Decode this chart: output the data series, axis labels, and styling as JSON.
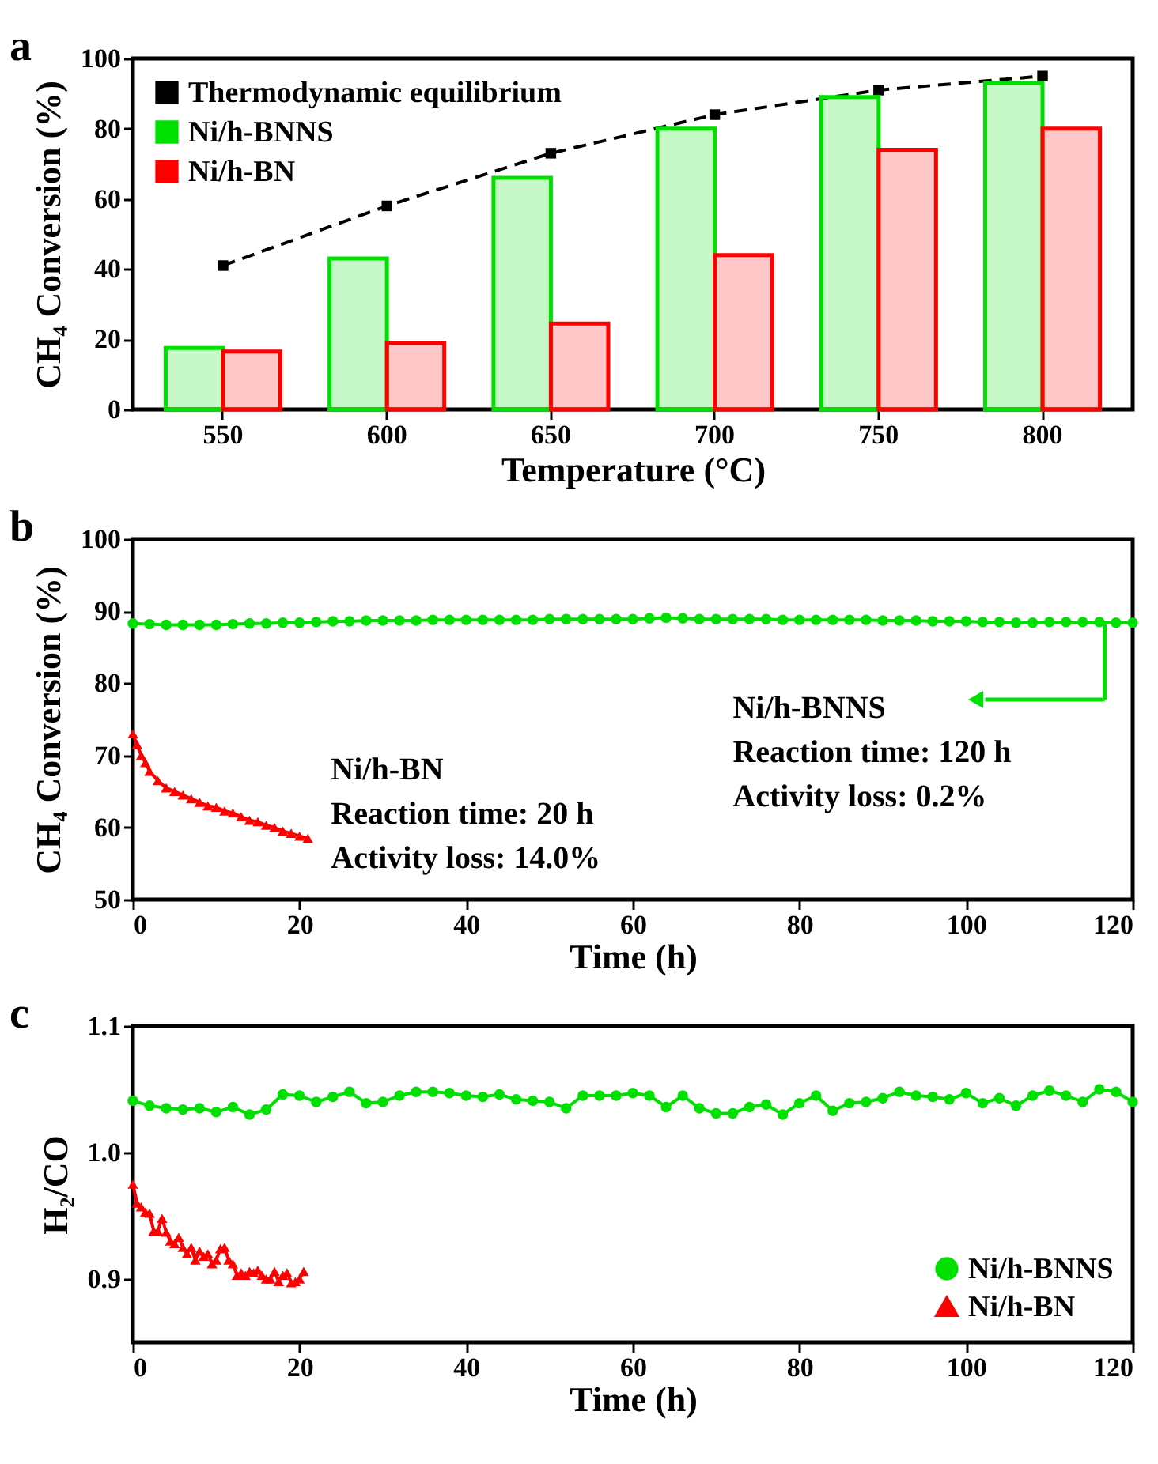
{
  "chart_data": [
    {
      "type": "bar",
      "title": "a",
      "xlabel": "Temperature (°C)",
      "ylabel": "CH₄ Conversion (%)",
      "categories": [
        "550",
        "600",
        "650",
        "700",
        "750",
        "800"
      ],
      "ylim": [
        0,
        100
      ],
      "yticks": [
        0,
        20,
        40,
        60,
        80,
        100
      ],
      "legend": "top left",
      "series": [
        {
          "type": "line",
          "name": "Thermodynamic equilibrium",
          "color": "#000000",
          "marker": "square",
          "line_style": "dashed",
          "values": [
            41,
            58,
            73,
            84,
            91,
            95
          ]
        },
        {
          "name": "Ni/h-BNNS",
          "color": "#00e000",
          "values": [
            17.5,
            43,
            66,
            80,
            89,
            93
          ]
        },
        {
          "name": "Ni/h-BN",
          "color": "#ff0000",
          "values": [
            16.5,
            19,
            24.5,
            44,
            74,
            80
          ]
        }
      ]
    },
    {
      "type": "line",
      "title": "b",
      "xlabel": "Time (h)",
      "ylabel": "CH₄ Conversion (%)",
      "xlim": [
        0,
        120
      ],
      "xticks": [
        0,
        20,
        40,
        60,
        80,
        100,
        120
      ],
      "ylim": [
        50,
        100
      ],
      "yticks": [
        50,
        60,
        70,
        80,
        90,
        100
      ],
      "legend": false,
      "annotations": [
        "Ni/h-BN",
        "Reaction time: 20 h",
        "Activity loss: 14.0%",
        "Ni/h-BNNS",
        "Reaction time: 120 h",
        "Activity loss: 0.2%"
      ],
      "series": [
        {
          "color": "#00e000",
          "marker": "circle",
          "x": [
            0,
            2,
            4,
            6,
            8,
            10,
            12,
            14,
            16,
            18,
            20,
            22,
            24,
            26,
            28,
            30,
            32,
            34,
            36,
            38,
            40,
            42,
            44,
            46,
            48,
            50,
            52,
            54,
            56,
            58,
            60,
            62,
            64,
            66,
            68,
            70,
            72,
            74,
            76,
            78,
            80,
            82,
            84,
            86,
            88,
            90,
            92,
            94,
            96,
            98,
            100,
            102,
            104,
            106,
            108,
            110,
            112,
            114,
            116,
            118,
            120
          ],
          "values": [
            88.3,
            88.2,
            88.1,
            88.1,
            88.1,
            88.1,
            88.2,
            88.3,
            88.3,
            88.4,
            88.4,
            88.5,
            88.6,
            88.6,
            88.7,
            88.7,
            88.7,
            88.7,
            88.8,
            88.8,
            88.8,
            88.8,
            88.8,
            88.8,
            88.8,
            88.9,
            88.9,
            88.9,
            88.9,
            88.9,
            88.9,
            89.0,
            89.1,
            89.0,
            88.9,
            88.9,
            88.9,
            88.9,
            88.9,
            88.8,
            88.8,
            88.8,
            88.8,
            88.8,
            88.8,
            88.7,
            88.7,
            88.7,
            88.6,
            88.6,
            88.6,
            88.5,
            88.5,
            88.4,
            88.4,
            88.5,
            88.5,
            88.5,
            88.5,
            88.4,
            88.4
          ]
        },
        {
          "color": "#ff0000",
          "marker": "triangle",
          "x": [
            0,
            0.5,
            1,
            1.5,
            2,
            3,
            4,
            5,
            6,
            7,
            8,
            9,
            10,
            11,
            12,
            13,
            14,
            15,
            16,
            17,
            18,
            19,
            20,
            21
          ],
          "values": [
            73,
            71.5,
            70,
            69,
            67.8,
            66.5,
            65.5,
            65,
            64.5,
            64,
            63.5,
            63,
            62.8,
            62.3,
            62,
            61.5,
            61,
            60.8,
            60.3,
            60,
            59.5,
            59.2,
            58.8,
            58.5
          ]
        }
      ]
    },
    {
      "type": "line",
      "title": "c",
      "xlabel": "Time (h)",
      "ylabel": "H₂/CO",
      "xlim": [
        0,
        120
      ],
      "xticks": [
        0,
        20,
        40,
        60,
        80,
        100,
        120
      ],
      "ylim": [
        0.85,
        1.1
      ],
      "yticks": [
        0.9,
        {
          "value": 1.0,
          "label": "1.0"
        },
        1.1
      ],
      "legend": "bottom right",
      "series": [
        {
          "name": "Ni/h-BNNS",
          "color": "#00e000",
          "marker": "circle",
          "x": [
            0,
            2,
            4,
            6,
            8,
            10,
            12,
            14,
            16,
            18,
            20,
            22,
            24,
            26,
            28,
            30,
            32,
            34,
            36,
            38,
            40,
            42,
            44,
            46,
            48,
            50,
            52,
            54,
            56,
            58,
            60,
            62,
            64,
            66,
            68,
            70,
            72,
            74,
            76,
            78,
            80,
            82,
            84,
            86,
            88,
            90,
            92,
            94,
            96,
            98,
            100,
            102,
            104,
            106,
            108,
            110,
            112,
            114,
            116,
            118,
            120
          ],
          "values": [
            1.041,
            1.037,
            1.035,
            1.034,
            1.035,
            1.032,
            1.036,
            1.03,
            1.034,
            1.046,
            1.045,
            1.04,
            1.044,
            1.048,
            1.039,
            1.04,
            1.045,
            1.048,
            1.048,
            1.047,
            1.045,
            1.044,
            1.046,
            1.042,
            1.041,
            1.04,
            1.035,
            1.045,
            1.045,
            1.045,
            1.047,
            1.045,
            1.036,
            1.045,
            1.035,
            1.031,
            1.031,
            1.036,
            1.038,
            1.03,
            1.039,
            1.045,
            1.033,
            1.039,
            1.04,
            1.043,
            1.048,
            1.045,
            1.044,
            1.042,
            1.047,
            1.039,
            1.043,
            1.037,
            1.045,
            1.049,
            1.045,
            1.04,
            1.05,
            1.048,
            1.04
          ]
        },
        {
          "name": "Ni/h-BN",
          "color": "#ff0000",
          "marker": "triangle",
          "x": [
            0,
            0.5,
            1,
            1.5,
            2,
            2.5,
            3,
            3.5,
            4,
            4.5,
            5,
            5.5,
            6,
            6.5,
            7,
            7.5,
            8,
            8.5,
            9,
            9.5,
            10,
            10.5,
            11,
            11.5,
            12,
            12.5,
            13,
            13.5,
            14,
            14.5,
            15,
            15.5,
            16,
            16.5,
            17,
            17.5,
            18,
            18.5,
            19,
            19.5,
            20,
            20.5
          ],
          "values": [
            0.975,
            0.96,
            0.957,
            0.953,
            0.952,
            0.938,
            0.938,
            0.948,
            0.937,
            0.93,
            0.928,
            0.933,
            0.925,
            0.92,
            0.925,
            0.915,
            0.922,
            0.918,
            0.92,
            0.912,
            0.915,
            0.924,
            0.925,
            0.915,
            0.912,
            0.903,
            0.905,
            0.903,
            0.906,
            0.905,
            0.907,
            0.903,
            0.9,
            0.9,
            0.906,
            0.898,
            0.903,
            0.905,
            0.897,
            0.898,
            0.9,
            0.906
          ]
        }
      ]
    }
  ]
}
